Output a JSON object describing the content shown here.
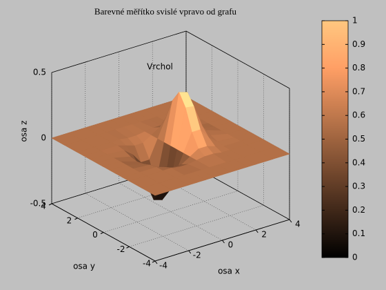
{
  "chart_data": {
    "type": "surface",
    "title": "Barevné měřítko svislé vpravo od grafu",
    "annotation": "Vrchol",
    "xlabel": "osa x",
    "ylabel": "osa y",
    "zlabel": "osa z",
    "x": [
      -4,
      -3,
      -2,
      -1.5,
      -1,
      -0.5,
      0,
      0.5,
      1,
      1.5,
      2,
      3,
      4
    ],
    "y": [
      -4,
      -3,
      -2,
      -1.5,
      -1,
      -0.5,
      0,
      0.5,
      1,
      1.5,
      2,
      3,
      4
    ],
    "z": [
      [
        0,
        0,
        0,
        0,
        0,
        0,
        0,
        0,
        0,
        0,
        0,
        0,
        0
      ],
      [
        0,
        0,
        0,
        0,
        0,
        0,
        0,
        0,
        0,
        0,
        0,
        0,
        0
      ],
      [
        0,
        0,
        0,
        0,
        -0.01,
        -0.01,
        0,
        0.01,
        0.01,
        0,
        0,
        0,
        0
      ],
      [
        0,
        0,
        0,
        -0.02,
        -0.04,
        -0.04,
        0,
        0.04,
        0.04,
        0.02,
        0,
        0,
        0
      ],
      [
        0,
        0,
        -0.01,
        -0.06,
        -0.14,
        -0.14,
        0,
        0.14,
        0.14,
        0.06,
        0.01,
        0,
        0
      ],
      [
        0,
        0,
        -0.03,
        -0.12,
        -0.29,
        -0.3,
        0,
        0.3,
        0.29,
        0.12,
        0.03,
        0,
        0
      ],
      [
        0,
        0,
        -0.04,
        -0.16,
        -0.37,
        -0.39,
        0,
        0.39,
        0.37,
        0.16,
        0.04,
        0,
        0
      ],
      [
        0,
        0,
        -0.03,
        -0.12,
        -0.29,
        -0.3,
        0,
        0.3,
        0.29,
        0.12,
        0.03,
        0,
        0
      ],
      [
        0,
        0,
        -0.01,
        -0.06,
        -0.14,
        -0.14,
        0,
        0.14,
        0.14,
        0.06,
        0.01,
        0,
        0
      ],
      [
        0,
        0,
        0,
        -0.02,
        -0.04,
        -0.04,
        0,
        0.04,
        0.04,
        0.02,
        0,
        0,
        0
      ],
      [
        0,
        0,
        0,
        0,
        -0.01,
        -0.01,
        0,
        0.01,
        0.01,
        0,
        0,
        0,
        0
      ],
      [
        0,
        0,
        0,
        0,
        0,
        0,
        0,
        0,
        0,
        0,
        0,
        0,
        0
      ],
      [
        0,
        0,
        0,
        0,
        0,
        0,
        0,
        0,
        0,
        0,
        0,
        0,
        0
      ]
    ],
    "xlim": [
      -4,
      4
    ],
    "ylim": [
      -4,
      4
    ],
    "zlim": [
      -0.5,
      0.5
    ],
    "xticks": [
      -4,
      -2,
      0,
      2,
      4
    ],
    "yticks": [
      -4,
      -2,
      0,
      2,
      4
    ],
    "zticks": [
      -0.5,
      0,
      0.5
    ],
    "grid": true,
    "colormap": "copper",
    "clim": [
      0,
      1
    ],
    "cticks": [
      0,
      0.1,
      0.2,
      0.3,
      0.4,
      0.5,
      0.6,
      0.7,
      0.8,
      0.9,
      1
    ]
  }
}
